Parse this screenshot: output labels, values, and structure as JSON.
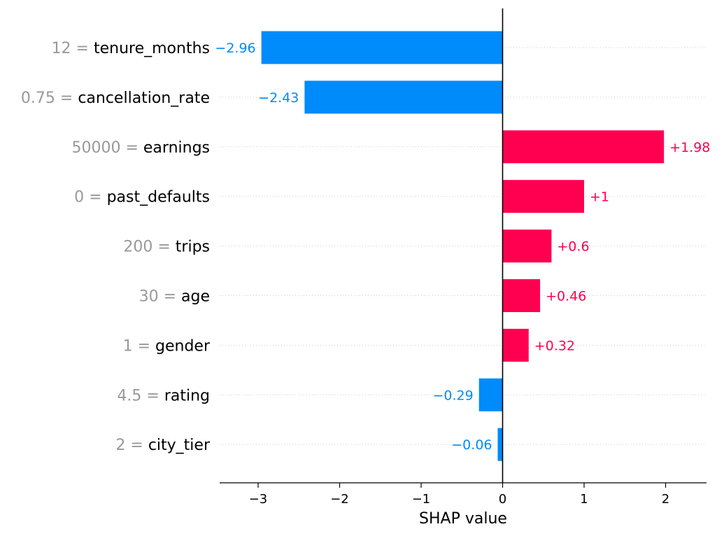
{
  "chart_data": {
    "type": "bar",
    "orientation": "horizontal",
    "xlabel": "SHAP value",
    "xlim": [
      -3.5,
      2.5
    ],
    "xticks": [
      -3,
      -2,
      -1,
      0,
      1,
      2
    ],
    "xtick_labels": [
      "−3",
      "−2",
      "−1",
      "0",
      "1",
      "2"
    ],
    "grid": false,
    "colors": {
      "positive": "#ff0051",
      "negative": "#008bfb",
      "feature_value": "#999999",
      "feature_name": "#000000"
    },
    "features": [
      {
        "value": "12",
        "name": "tenure_months",
        "shap": -2.96,
        "label": "−2.96"
      },
      {
        "value": "0.75",
        "name": "cancellation_rate",
        "shap": -2.43,
        "label": "−2.43"
      },
      {
        "value": "50000",
        "name": "earnings",
        "shap": 1.98,
        "label": "+1.98"
      },
      {
        "value": "0",
        "name": "past_defaults",
        "shap": 1.0,
        "label": "+1"
      },
      {
        "value": "200",
        "name": "trips",
        "shap": 0.6,
        "label": "+0.6"
      },
      {
        "value": "30",
        "name": "age",
        "shap": 0.46,
        "label": "+0.46"
      },
      {
        "value": "1",
        "name": "gender",
        "shap": 0.32,
        "label": "+0.32"
      },
      {
        "value": "4.5",
        "name": "rating",
        "shap": -0.29,
        "label": "−0.29"
      },
      {
        "value": "2",
        "name": "city_tier",
        "shap": -0.06,
        "label": "−0.06"
      }
    ]
  }
}
